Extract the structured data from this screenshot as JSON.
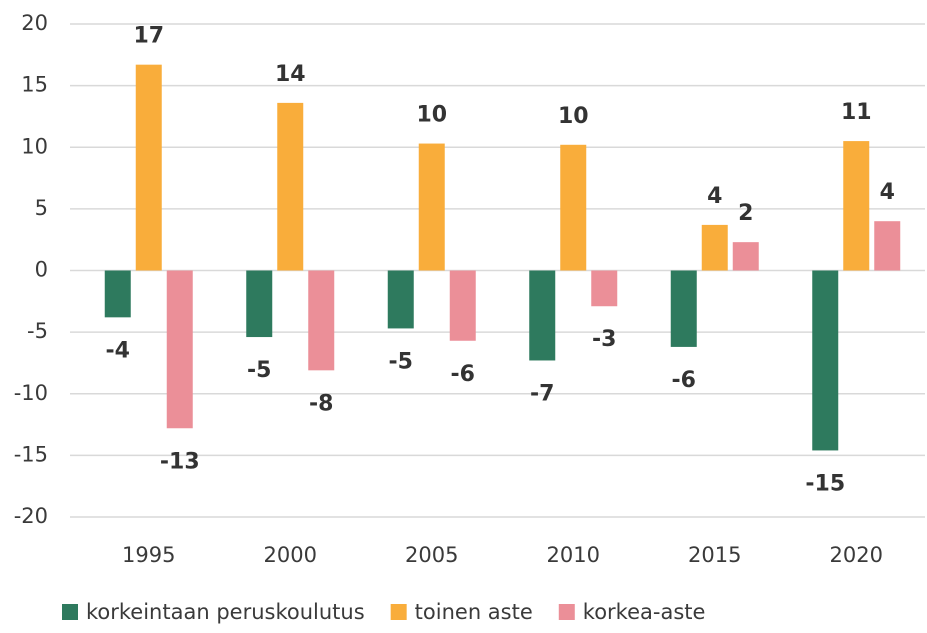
{
  "chart_data": {
    "type": "bar",
    "categories": [
      "1995",
      "2000",
      "2005",
      "2010",
      "2015",
      "2020"
    ],
    "series": [
      {
        "name": "korkeintaan peruskoulutus",
        "color": "#2e7a5e",
        "values": [
          -3.8,
          -5.4,
          -4.7,
          -7.3,
          -6.2,
          -14.6
        ],
        "value_labels": [
          "-4",
          "-5",
          "-5",
          "-7",
          "-6",
          "-15"
        ]
      },
      {
        "name": "toinen aste",
        "color": "#f9ad3b",
        "values": [
          16.7,
          13.6,
          10.3,
          10.2,
          3.7,
          10.5
        ],
        "value_labels": [
          "17",
          "14",
          "10",
          "10",
          "4",
          "11"
        ]
      },
      {
        "name": "korkea-aste",
        "color": "#eb8f98",
        "values": [
          -12.8,
          -8.1,
          -5.7,
          -2.9,
          2.3,
          4.0
        ],
        "value_labels": [
          "-13",
          "-8",
          "-6",
          "-3",
          "2",
          "4"
        ]
      }
    ],
    "ylim": [
      -20,
      20
    ],
    "yticks": [
      -20,
      -15,
      -10,
      -5,
      0,
      5,
      10,
      15,
      20
    ],
    "grid": true,
    "legend": "bottom"
  }
}
